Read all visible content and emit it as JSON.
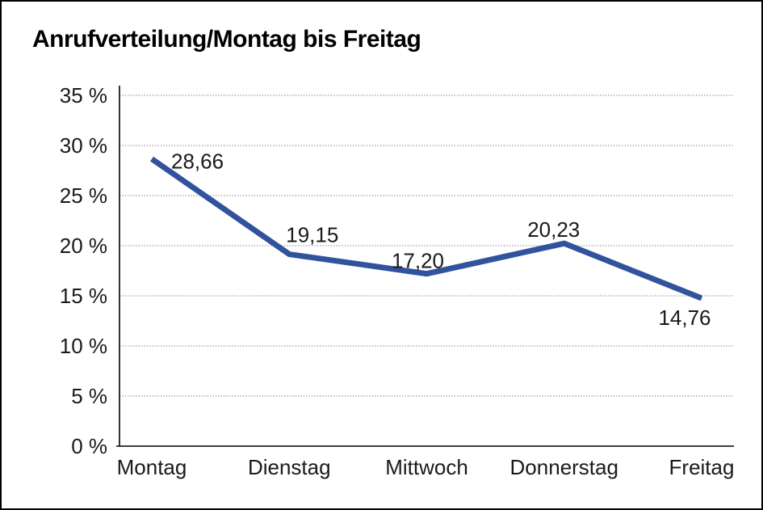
{
  "window": {
    "background_color": "#ffffff",
    "frame_border_color": "#000000"
  },
  "chart_data": {
    "type": "line",
    "title": "Anrufverteilung/Montag bis Freitag",
    "categories": [
      "Montag",
      "Dienstag",
      "Mittwoch",
      "Donnerstag",
      "Freitag"
    ],
    "series": [
      {
        "name": "Anrufverteilung",
        "values": [
          28.66,
          19.15,
          17.2,
          20.23,
          14.76
        ],
        "point_labels": [
          "28,66",
          "19,15",
          "17,20",
          "20,23",
          "14,76"
        ]
      }
    ],
    "xlabel": "",
    "ylabel": "",
    "ylim": [
      0,
      35
    ],
    "y_tick_step": 5,
    "y_ticks": [
      0,
      5,
      10,
      15,
      20,
      25,
      30,
      35
    ],
    "y_tick_labels": [
      "0 %",
      "5 %",
      "10 %",
      "15 %",
      "20 %",
      "25 %",
      "30 %",
      "35 %"
    ],
    "grid": "horizontal-dotted",
    "legend_position": "none",
    "line_color": "#31529D",
    "gridline_color": "#8c8c8c",
    "axis_color": "#000000",
    "text_color": "#1a1a1a"
  }
}
